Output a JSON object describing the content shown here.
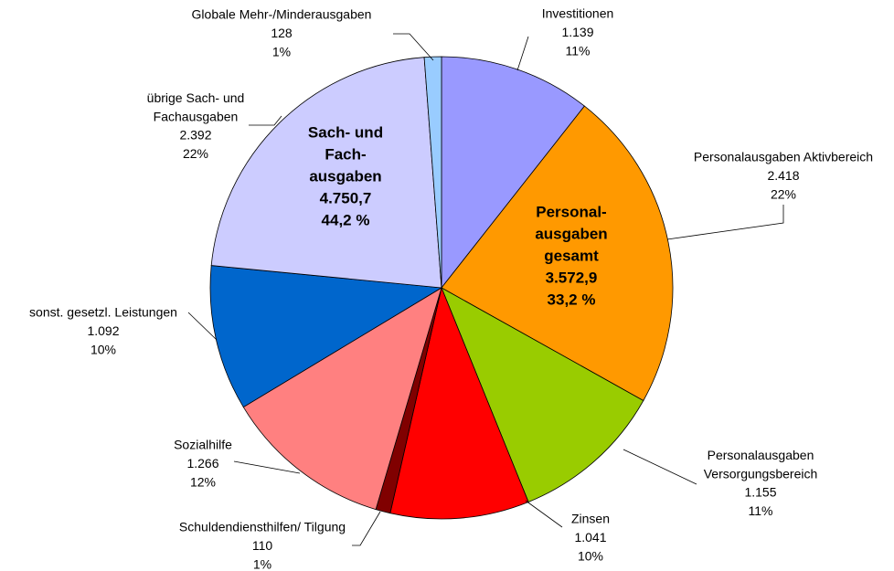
{
  "chart_data": {
    "type": "pie",
    "categories": [
      "Investitionen",
      "Personalausgaben Aktivbereich",
      "Personalausgaben Versorgungsbereich",
      "Zinsen",
      "Schuldendiensthilfen/ Tilgung",
      "Sozialhilfe",
      "sonst. gesetzl. Leistungen",
      "übrige Sach- und Fachausgaben",
      "Globale Mehr-/Minderausgaben"
    ],
    "values": [
      1139,
      2418,
      1155,
      1041,
      110,
      1266,
      1092,
      2392,
      128
    ],
    "value_labels": [
      "1.139",
      "2.418",
      "1.155",
      "1.041",
      "110",
      "1.266",
      "1.092",
      "2.392",
      "128"
    ],
    "percentages": [
      11,
      22,
      11,
      10,
      1,
      12,
      10,
      22,
      1
    ],
    "percentage_labels": [
      "11%",
      "22%",
      "11%",
      "10%",
      "1%",
      "12%",
      "10%",
      "22%",
      "1%"
    ],
    "colors": [
      "#9999ff",
      "#ff9900",
      "#99cc00",
      "#ff0000",
      "#800000",
      "#ff8080",
      "#0066cc",
      "#ccccff",
      "#99ccff"
    ],
    "annotations": [
      {
        "lines": [
          "Personal-",
          "ausgaben",
          "gesamt",
          "3.572,9",
          "33,2 %"
        ]
      },
      {
        "lines": [
          "Sach- und",
          "Fach-",
          "ausgaben",
          "4.750,7",
          "44,2 %"
        ]
      }
    ]
  }
}
